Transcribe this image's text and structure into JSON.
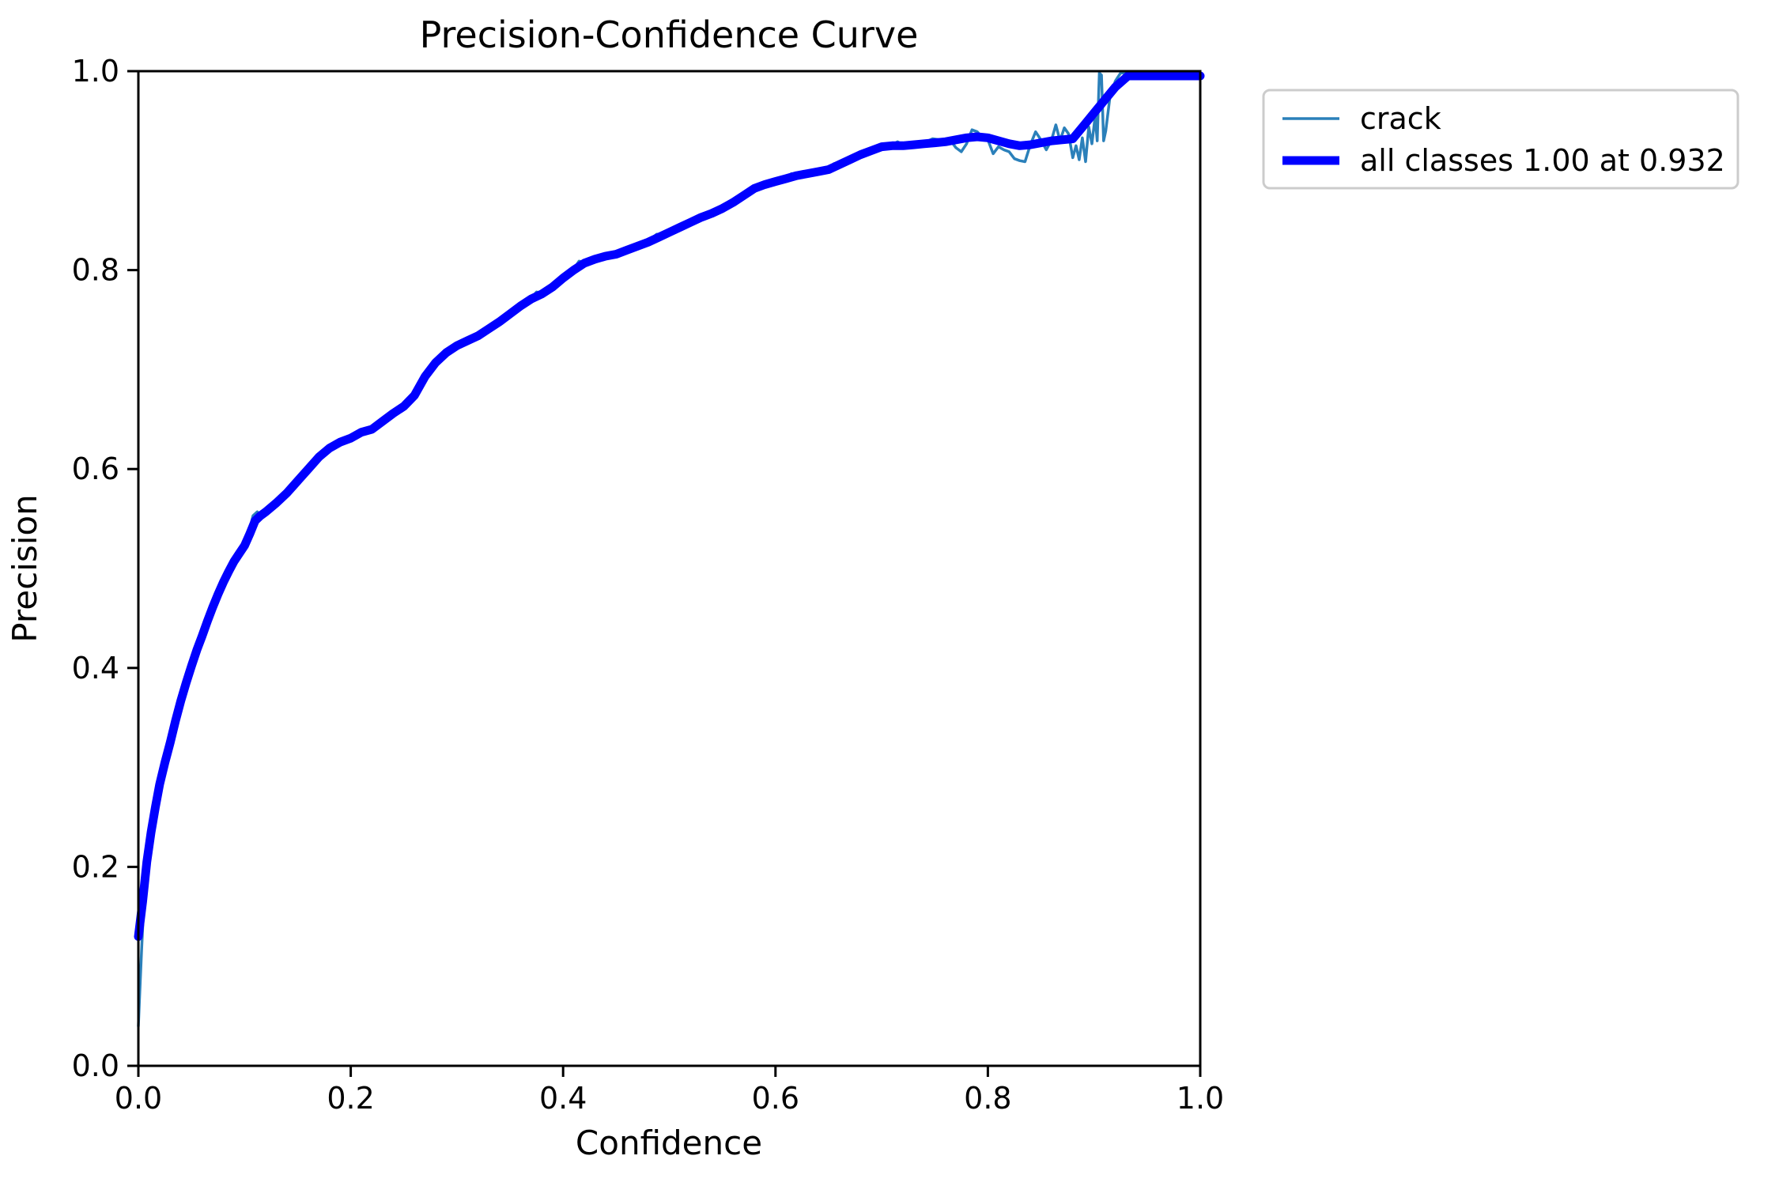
{
  "chart_data": {
    "type": "line",
    "title": "Precision-Confidence Curve",
    "xlabel": "Confidence",
    "ylabel": "Precision",
    "xlim": [
      0.0,
      1.0
    ],
    "ylim": [
      0.0,
      1.0
    ],
    "x_tick_labels": [
      "0.0",
      "0.2",
      "0.4",
      "0.6",
      "0.8",
      "1.0"
    ],
    "x_tick_values": [
      0.0,
      0.2,
      0.4,
      0.6,
      0.8,
      1.0
    ],
    "y_tick_labels": [
      "0.0",
      "0.2",
      "0.4",
      "0.6",
      "0.8",
      "1.0"
    ],
    "y_tick_values": [
      0.0,
      0.2,
      0.4,
      0.6,
      0.8,
      1.0
    ],
    "grid": false,
    "legend_position": "upper-right-outside",
    "annotation": "all classes curve reaches precision 1.00 at confidence 0.932",
    "series": [
      {
        "name": "crack",
        "label": "crack",
        "color": "#2b80ba",
        "line_width": 3.5,
        "points": [
          [
            0.0,
            0.04
          ],
          [
            0.001,
            0.065
          ],
          [
            0.003,
            0.115
          ],
          [
            0.005,
            0.16
          ],
          [
            0.007,
            0.19
          ],
          [
            0.01,
            0.218
          ],
          [
            0.014,
            0.248
          ],
          [
            0.018,
            0.272
          ],
          [
            0.022,
            0.293
          ],
          [
            0.026,
            0.31
          ],
          [
            0.03,
            0.328
          ],
          [
            0.035,
            0.35
          ],
          [
            0.04,
            0.37
          ],
          [
            0.045,
            0.388
          ],
          [
            0.05,
            0.404
          ],
          [
            0.055,
            0.42
          ],
          [
            0.06,
            0.434
          ],
          [
            0.065,
            0.449
          ],
          [
            0.07,
            0.463
          ],
          [
            0.075,
            0.476
          ],
          [
            0.08,
            0.488
          ],
          [
            0.085,
            0.498
          ],
          [
            0.09,
            0.508
          ],
          [
            0.095,
            0.516
          ],
          [
            0.1,
            0.524
          ],
          [
            0.104,
            0.536
          ],
          [
            0.108,
            0.553
          ],
          [
            0.112,
            0.557
          ],
          [
            0.116,
            0.552
          ],
          [
            0.12,
            0.558
          ],
          [
            0.13,
            0.568
          ],
          [
            0.14,
            0.577
          ],
          [
            0.15,
            0.589
          ],
          [
            0.16,
            0.601
          ],
          [
            0.17,
            0.614
          ],
          [
            0.18,
            0.623
          ],
          [
            0.19,
            0.628
          ],
          [
            0.2,
            0.632
          ],
          [
            0.21,
            0.638
          ],
          [
            0.22,
            0.641
          ],
          [
            0.23,
            0.649
          ],
          [
            0.24,
            0.657
          ],
          [
            0.25,
            0.664
          ],
          [
            0.26,
            0.675
          ],
          [
            0.27,
            0.694
          ],
          [
            0.28,
            0.709
          ],
          [
            0.29,
            0.719
          ],
          [
            0.3,
            0.725
          ],
          [
            0.31,
            0.73
          ],
          [
            0.32,
            0.735
          ],
          [
            0.33,
            0.742
          ],
          [
            0.34,
            0.749
          ],
          [
            0.35,
            0.757
          ],
          [
            0.36,
            0.765
          ],
          [
            0.37,
            0.772
          ],
          [
            0.375,
            0.778
          ],
          [
            0.38,
            0.777
          ],
          [
            0.39,
            0.784
          ],
          [
            0.4,
            0.793
          ],
          [
            0.41,
            0.801
          ],
          [
            0.415,
            0.809
          ],
          [
            0.42,
            0.808
          ],
          [
            0.43,
            0.812
          ],
          [
            0.44,
            0.815
          ],
          [
            0.45,
            0.817
          ],
          [
            0.46,
            0.821
          ],
          [
            0.47,
            0.825
          ],
          [
            0.48,
            0.829
          ],
          [
            0.488,
            0.836
          ],
          [
            0.495,
            0.836
          ],
          [
            0.5,
            0.839
          ],
          [
            0.51,
            0.844
          ],
          [
            0.52,
            0.849
          ],
          [
            0.53,
            0.854
          ],
          [
            0.54,
            0.858
          ],
          [
            0.55,
            0.863
          ],
          [
            0.555,
            0.868
          ],
          [
            0.56,
            0.869
          ],
          [
            0.57,
            0.876
          ],
          [
            0.58,
            0.883
          ],
          [
            0.59,
            0.887
          ],
          [
            0.6,
            0.89
          ],
          [
            0.61,
            0.893
          ],
          [
            0.615,
            0.897
          ],
          [
            0.62,
            0.896
          ],
          [
            0.63,
            0.898
          ],
          [
            0.64,
            0.9
          ],
          [
            0.65,
            0.902
          ],
          [
            0.655,
            0.907
          ],
          [
            0.66,
            0.907
          ],
          [
            0.67,
            0.912
          ],
          [
            0.68,
            0.917
          ],
          [
            0.69,
            0.921
          ],
          [
            0.7,
            0.925
          ],
          [
            0.71,
            0.926
          ],
          [
            0.715,
            0.929
          ],
          [
            0.72,
            0.926
          ],
          [
            0.73,
            0.927
          ],
          [
            0.74,
            0.928
          ],
          [
            0.748,
            0.932
          ],
          [
            0.755,
            0.931
          ],
          [
            0.76,
            0.927
          ],
          [
            0.765,
            0.93
          ],
          [
            0.77,
            0.923
          ],
          [
            0.775,
            0.919
          ],
          [
            0.78,
            0.927
          ],
          [
            0.785,
            0.941
          ],
          [
            0.79,
            0.939
          ],
          [
            0.795,
            0.933
          ],
          [
            0.8,
            0.931
          ],
          [
            0.805,
            0.917
          ],
          [
            0.81,
            0.924
          ],
          [
            0.815,
            0.921
          ],
          [
            0.82,
            0.919
          ],
          [
            0.825,
            0.912
          ],
          [
            0.83,
            0.91
          ],
          [
            0.835,
            0.909
          ],
          [
            0.84,
            0.926
          ],
          [
            0.845,
            0.939
          ],
          [
            0.85,
            0.931
          ],
          [
            0.855,
            0.921
          ],
          [
            0.86,
            0.931
          ],
          [
            0.864,
            0.946
          ],
          [
            0.868,
            0.93
          ],
          [
            0.872,
            0.943
          ],
          [
            0.876,
            0.937
          ],
          [
            0.88,
            0.913
          ],
          [
            0.883,
            0.925
          ],
          [
            0.886,
            0.911
          ],
          [
            0.889,
            0.933
          ],
          [
            0.892,
            0.909
          ],
          [
            0.895,
            0.944
          ],
          [
            0.898,
            0.927
          ],
          [
            0.901,
            0.954
          ],
          [
            0.903,
            0.93
          ],
          [
            0.905,
            1.0
          ],
          [
            0.907,
            0.996
          ],
          [
            0.909,
            0.93
          ],
          [
            0.911,
            0.94
          ],
          [
            0.915,
            0.974
          ],
          [
            0.92,
            0.99
          ],
          [
            0.925,
            1.0
          ],
          [
            0.95,
            1.0
          ],
          [
            1.0,
            1.0
          ]
        ]
      },
      {
        "name": "all-classes",
        "label": "all classes 1.00 at 0.932",
        "color": "#0000ff",
        "line_width": 11,
        "points": [
          [
            0.0,
            0.13
          ],
          [
            0.004,
            0.165
          ],
          [
            0.008,
            0.205
          ],
          [
            0.012,
            0.235
          ],
          [
            0.016,
            0.26
          ],
          [
            0.02,
            0.283
          ],
          [
            0.025,
            0.305
          ],
          [
            0.03,
            0.325
          ],
          [
            0.035,
            0.347
          ],
          [
            0.04,
            0.367
          ],
          [
            0.045,
            0.385
          ],
          [
            0.05,
            0.402
          ],
          [
            0.055,
            0.418
          ],
          [
            0.06,
            0.432
          ],
          [
            0.065,
            0.447
          ],
          [
            0.07,
            0.461
          ],
          [
            0.075,
            0.474
          ],
          [
            0.08,
            0.486
          ],
          [
            0.085,
            0.497
          ],
          [
            0.09,
            0.507
          ],
          [
            0.095,
            0.515
          ],
          [
            0.1,
            0.523
          ],
          [
            0.105,
            0.535
          ],
          [
            0.11,
            0.548
          ],
          [
            0.115,
            0.553
          ],
          [
            0.12,
            0.557
          ],
          [
            0.13,
            0.566
          ],
          [
            0.14,
            0.576
          ],
          [
            0.15,
            0.588
          ],
          [
            0.16,
            0.6
          ],
          [
            0.17,
            0.612
          ],
          [
            0.18,
            0.621
          ],
          [
            0.19,
            0.627
          ],
          [
            0.2,
            0.631
          ],
          [
            0.21,
            0.637
          ],
          [
            0.22,
            0.64
          ],
          [
            0.23,
            0.648
          ],
          [
            0.24,
            0.656
          ],
          [
            0.25,
            0.663
          ],
          [
            0.26,
            0.674
          ],
          [
            0.27,
            0.693
          ],
          [
            0.28,
            0.707
          ],
          [
            0.29,
            0.717
          ],
          [
            0.3,
            0.724
          ],
          [
            0.31,
            0.729
          ],
          [
            0.32,
            0.734
          ],
          [
            0.33,
            0.741
          ],
          [
            0.34,
            0.748
          ],
          [
            0.35,
            0.756
          ],
          [
            0.36,
            0.764
          ],
          [
            0.37,
            0.771
          ],
          [
            0.38,
            0.776
          ],
          [
            0.39,
            0.783
          ],
          [
            0.4,
            0.792
          ],
          [
            0.41,
            0.8
          ],
          [
            0.42,
            0.807
          ],
          [
            0.43,
            0.811
          ],
          [
            0.44,
            0.814
          ],
          [
            0.45,
            0.816
          ],
          [
            0.46,
            0.82
          ],
          [
            0.47,
            0.824
          ],
          [
            0.48,
            0.828
          ],
          [
            0.49,
            0.833
          ],
          [
            0.5,
            0.838
          ],
          [
            0.51,
            0.843
          ],
          [
            0.52,
            0.848
          ],
          [
            0.53,
            0.853
          ],
          [
            0.54,
            0.857
          ],
          [
            0.55,
            0.862
          ],
          [
            0.56,
            0.868
          ],
          [
            0.57,
            0.875
          ],
          [
            0.58,
            0.882
          ],
          [
            0.59,
            0.886
          ],
          [
            0.6,
            0.889
          ],
          [
            0.61,
            0.892
          ],
          [
            0.62,
            0.895
          ],
          [
            0.63,
            0.897
          ],
          [
            0.64,
            0.899
          ],
          [
            0.65,
            0.901
          ],
          [
            0.66,
            0.906
          ],
          [
            0.67,
            0.911
          ],
          [
            0.68,
            0.916
          ],
          [
            0.69,
            0.92
          ],
          [
            0.7,
            0.924
          ],
          [
            0.71,
            0.925
          ],
          [
            0.72,
            0.925
          ],
          [
            0.73,
            0.926
          ],
          [
            0.74,
            0.927
          ],
          [
            0.75,
            0.928
          ],
          [
            0.76,
            0.929
          ],
          [
            0.77,
            0.931
          ],
          [
            0.78,
            0.933
          ],
          [
            0.79,
            0.934
          ],
          [
            0.8,
            0.933
          ],
          [
            0.81,
            0.93
          ],
          [
            0.82,
            0.927
          ],
          [
            0.83,
            0.925
          ],
          [
            0.84,
            0.926
          ],
          [
            0.85,
            0.928
          ],
          [
            0.86,
            0.93
          ],
          [
            0.87,
            0.931
          ],
          [
            0.88,
            0.932
          ],
          [
            0.89,
            0.945
          ],
          [
            0.9,
            0.958
          ],
          [
            0.91,
            0.971
          ],
          [
            0.92,
            0.984
          ],
          [
            0.932,
            1.0
          ],
          [
            0.95,
            1.0
          ],
          [
            1.0,
            1.0
          ]
        ]
      }
    ]
  }
}
